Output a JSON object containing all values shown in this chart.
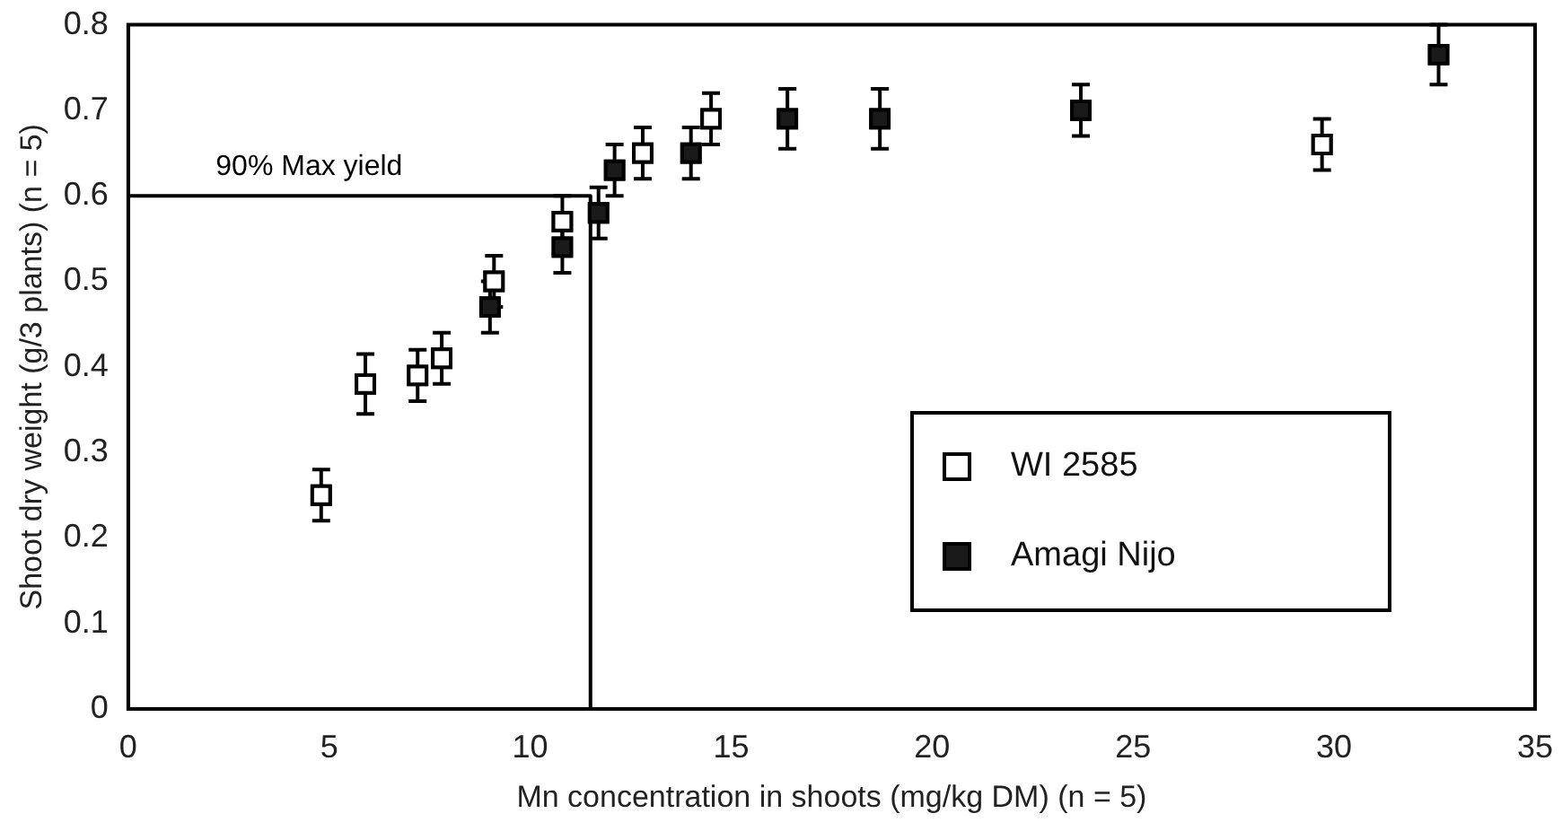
{
  "chart_data": {
    "type": "scatter",
    "xlabel": "Mn concentration in shoots (mg/kg DM) (n = 5)",
    "ylabel": "Shoot dry weight (g/3 plants) (n = 5)",
    "xlim": [
      0,
      35
    ],
    "xticks": [
      0,
      5,
      10,
      15,
      20,
      25,
      30,
      35
    ],
    "ylim": [
      0,
      0.8
    ],
    "yticks": [
      0,
      0.1,
      0.2,
      0.3,
      0.4,
      0.5,
      0.6,
      0.7,
      0.8
    ],
    "grid": false,
    "legend": "bottom right",
    "marker": "square",
    "series": [
      {
        "name": "WI 2585",
        "color": "#ffffff",
        "x": [
          4.8,
          5.9,
          7.2,
          7.8,
          9.1,
          10.8,
          12.8,
          14.5,
          29.7
        ],
        "values": [
          0.25,
          0.38,
          0.39,
          0.41,
          0.5,
          0.57,
          0.65,
          0.69,
          0.66
        ],
        "errors": [
          0.03,
          0.035,
          0.03,
          0.03,
          0.03,
          0.03,
          0.03,
          0.03,
          0.03
        ]
      },
      {
        "name": "Amagi Nijo",
        "color": "#1a1a1a",
        "x": [
          9.0,
          10.8,
          11.7,
          12.1,
          14.0,
          16.4,
          18.7,
          23.7,
          32.6
        ],
        "values": [
          0.47,
          0.54,
          0.58,
          0.63,
          0.65,
          0.69,
          0.69,
          0.7,
          0.765
        ],
        "errors": [
          0.03,
          0.03,
          0.03,
          0.03,
          0.03,
          0.035,
          0.035,
          0.03,
          0.035
        ]
      },
      {
        "type": "line",
        "color": "#000000",
        "marker": "none",
        "x": [
          0,
          11.5,
          11.5
        ],
        "values": [
          0.6,
          0.6,
          0
        ]
      }
    ],
    "annotations": [
      {
        "text": "90% Max yield",
        "x": 4.5,
        "y": 0.6
      }
    ]
  }
}
